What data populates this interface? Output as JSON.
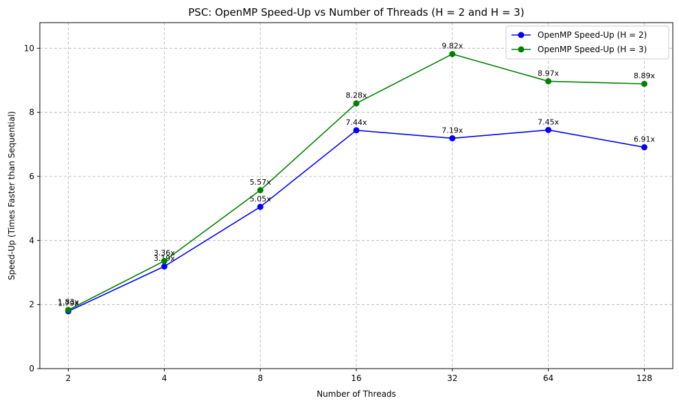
{
  "chart_data": {
    "type": "line",
    "title": "PSC: OpenMP Speed-Up vs Number of Threads (H = 2 and H = 3)",
    "xlabel": "Number of Threads",
    "ylabel": "Speed-Up (Times Faster than Sequential)",
    "categories": [
      "2",
      "4",
      "8",
      "16",
      "32",
      "64",
      "128"
    ],
    "ylim": [
      0,
      10.8
    ],
    "yticks": [
      "0",
      "2",
      "4",
      "6",
      "8",
      "10"
    ],
    "grid": true,
    "legend_position": "top-right",
    "series": [
      {
        "name": "OpenMP Speed-Up (H = 2)",
        "color": "#0000ff",
        "marker": "circle",
        "values": [
          1.79,
          3.19,
          5.05,
          7.44,
          7.19,
          7.45,
          6.91
        ],
        "labels": [
          "1.79x",
          "3.19x",
          "5.05x",
          "7.44x",
          "7.19x",
          "7.45x",
          "6.91x"
        ]
      },
      {
        "name": "OpenMP Speed-Up (H = 3)",
        "color": "#008000",
        "marker": "circle",
        "values": [
          1.83,
          3.36,
          5.57,
          8.28,
          9.82,
          8.97,
          8.89
        ],
        "labels": [
          "1.83x",
          "3.36x",
          "5.57x",
          "8.28x",
          "9.82x",
          "8.97x",
          "8.89x"
        ]
      }
    ]
  }
}
